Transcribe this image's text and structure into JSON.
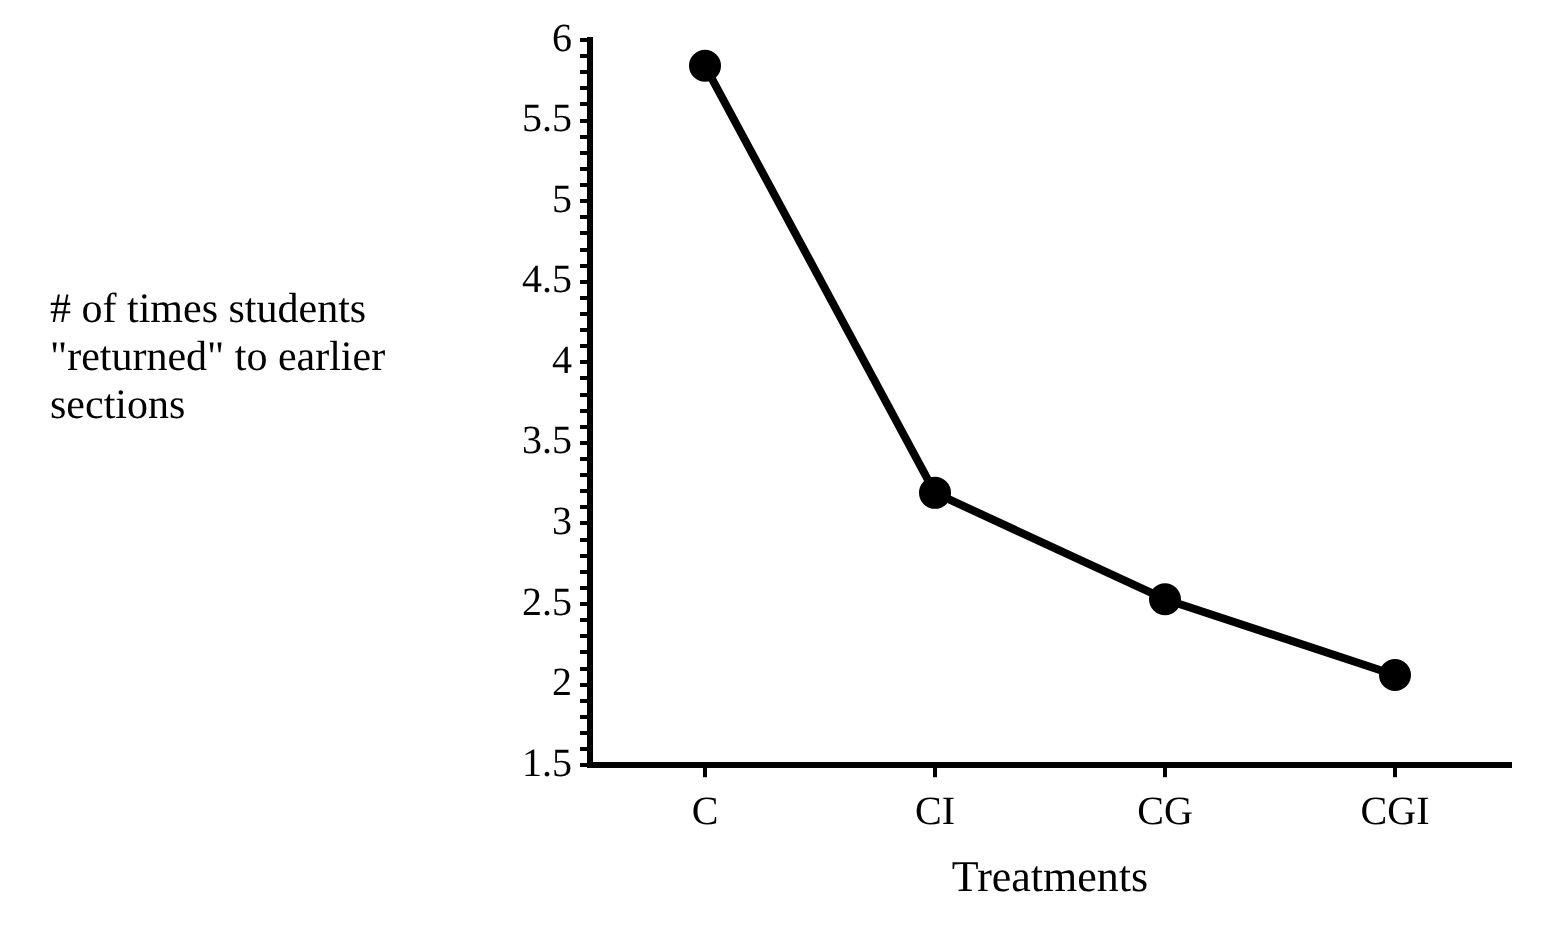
{
  "chart_data": {
    "type": "line",
    "xlabel": "Treatments",
    "ylabel": "# of times students \"returned\" to earlier sections",
    "categories": [
      "C",
      "CI",
      "CG",
      "CGI"
    ],
    "series": [
      {
        "color": "#000000",
        "values": [
          5.84,
          3.19,
          2.53,
          2.06
        ]
      }
    ],
    "ylim": [
      1.5,
      6
    ],
    "yticks": [
      1.5,
      {
        "value": 1.6,
        "label": null
      },
      {
        "value": 1.7,
        "label": null
      },
      {
        "value": 1.8,
        "label": null
      },
      {
        "value": 1.9,
        "label": null
      },
      2,
      {
        "value": 2.1,
        "label": null
      },
      {
        "value": 2.2,
        "label": null
      },
      {
        "value": 2.3,
        "label": null
      },
      {
        "value": 2.4,
        "label": null
      },
      2.5,
      {
        "value": 2.6,
        "label": null
      },
      {
        "value": 2.7,
        "label": null
      },
      {
        "value": 2.8,
        "label": null
      },
      {
        "value": 2.9,
        "label": null
      },
      3,
      {
        "value": 3.1,
        "label": null
      },
      {
        "value": 3.2,
        "label": null
      },
      {
        "value": 3.3,
        "label": null
      },
      {
        "value": 3.4,
        "label": null
      },
      3.5,
      {
        "value": 3.6,
        "label": null
      },
      {
        "value": 3.7,
        "label": null
      },
      {
        "value": 3.8,
        "label": null
      },
      {
        "value": 3.9,
        "label": null
      },
      4,
      {
        "value": 4.1,
        "label": null
      },
      {
        "value": 4.2,
        "label": null
      },
      {
        "value": 4.3,
        "label": null
      },
      {
        "value": 4.4,
        "label": null
      },
      4.5,
      {
        "value": 4.6,
        "label": null
      },
      {
        "value": 4.7,
        "label": null
      },
      {
        "value": 4.8,
        "label": null
      },
      {
        "value": 4.9,
        "label": null
      },
      5,
      {
        "value": 5.1,
        "label": null
      },
      {
        "value": 5.2,
        "label": null
      },
      {
        "value": 5.3,
        "label": null
      },
      {
        "value": 5.4,
        "label": null
      },
      5.5,
      {
        "value": 5.6,
        "label": null
      },
      {
        "value": 5.7,
        "label": null
      },
      {
        "value": 5.8,
        "label": null
      },
      {
        "value": 5.9,
        "label": null
      },
      6
    ],
    "grid": false,
    "legend": false,
    "marker": "circle",
    "line_style": "solid"
  }
}
